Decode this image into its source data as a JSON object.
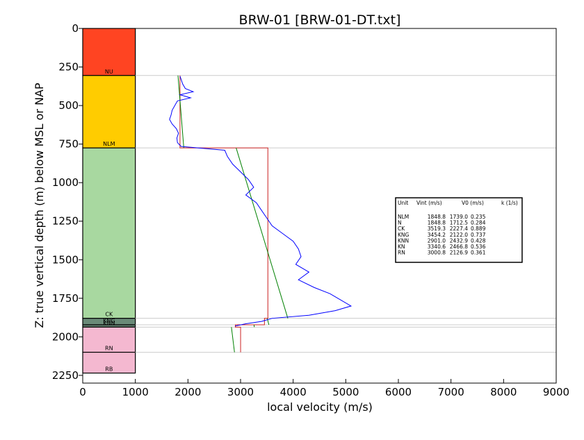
{
  "chart_data": {
    "type": "line",
    "title": "BRW-01 [BRW-01-DT.txt]",
    "xlabel": "local velocity (m/s)",
    "ylabel": "Z: true vertical depth (m) below MSL or NAP",
    "xlim": [
      0,
      9000
    ],
    "ylim": [
      2300,
      0
    ],
    "y_inverted": true,
    "x_ticks": [
      "0",
      "1000",
      "2000",
      "3000",
      "4000",
      "5000",
      "6000",
      "7000",
      "8000",
      "9000"
    ],
    "y_ticks": [
      "0",
      "250",
      "500",
      "750",
      "1000",
      "1250",
      "1500",
      "1750",
      "2000",
      "2250"
    ],
    "grid": false,
    "colors": {
      "sonic_log": "#0000ff",
      "interval_velocity": "#cc2222",
      "linear_model": "#008000",
      "boundary_lines": "#cccccc"
    },
    "strat_units": [
      {
        "label": "NU",
        "top": 0,
        "base": 305,
        "color": "#ff4422"
      },
      {
        "label": "NLM",
        "top": 305,
        "base": 775,
        "color": "#ffcc00"
      },
      {
        "label": "CK",
        "top": 775,
        "base": 1880,
        "color": "#a8d8a0"
      },
      {
        "label": "KNG",
        "top": 1880,
        "base": 1922,
        "color": "#6a8a78"
      },
      {
        "label": "KNN",
        "top": 1922,
        "base": 1937,
        "color": "#6a8a78"
      },
      {
        "label": "RN",
        "top": 1937,
        "base": 2100,
        "color": "#f4b8d0"
      },
      {
        "label": "RB",
        "top": 2100,
        "base": 2235,
        "color": "#f4b8d0"
      }
    ],
    "boundary_depths": [
      305,
      775,
      1880,
      1922,
      1937,
      2100
    ],
    "series": [
      {
        "kind": "interval-velocity",
        "segments": [
          {
            "top": 305,
            "base": 775,
            "v": 1848.8
          },
          {
            "top": 775,
            "base": 1880,
            "v": 3519.3
          },
          {
            "top": 1880,
            "base": 1922,
            "v": 3454.2
          },
          {
            "top": 1922,
            "base": 1937,
            "v": 2901.0
          },
          {
            "top": 1937,
            "base": 2100,
            "v": 3000.8
          }
        ]
      },
      {
        "kind": "linear-velocity-model",
        "segments": [
          {
            "top": 305,
            "base": 775,
            "v0": 1739.0,
            "k": 0.235
          },
          {
            "top": 775,
            "base": 1880,
            "v0": 2227.4,
            "k": 0.889
          },
          {
            "top": 1880,
            "base": 1922,
            "v0": 2122.0,
            "k": 0.737
          },
          {
            "top": 1922,
            "base": 1937,
            "v0": 2432.9,
            "k": 0.428
          },
          {
            "top": 1937,
            "base": 2100,
            "v0": 2126.9,
            "k": 0.361
          }
        ]
      },
      {
        "kind": "sonic-log",
        "depth": [
          310,
          360,
          390,
          410,
          430,
          450,
          470,
          500,
          530,
          560,
          590,
          620,
          650,
          680,
          710,
          740,
          765,
          790,
          830,
          880,
          930,
          980,
          1030,
          1080,
          1130,
          1180,
          1230,
          1280,
          1330,
          1380,
          1430,
          1480,
          1530,
          1580,
          1630,
          1680,
          1720,
          1760,
          1800,
          1830,
          1860,
          1880,
          1900,
          1915,
          1930
        ],
        "velocity": [
          1850,
          1900,
          1950,
          2100,
          1850,
          2050,
          1800,
          1750,
          1700,
          1680,
          1650,
          1700,
          1780,
          1820,
          1790,
          1800,
          1870,
          2700,
          2750,
          2850,
          3000,
          3150,
          3250,
          3100,
          3300,
          3400,
          3500,
          3600,
          3800,
          4000,
          4100,
          4150,
          4050,
          4300,
          4100,
          4400,
          4700,
          4900,
          5100,
          4800,
          4300,
          3600,
          3400,
          3100,
          2900
        ]
      }
    ],
    "table": {
      "headers": [
        "Unit",
        "Vint (m/s)",
        "V0 (m/s)",
        "k (1/s)"
      ],
      "rows": [
        {
          "unit": "NLM",
          "vint": "1848.8",
          "v0": "1739.0",
          "k": "0.235"
        },
        {
          "unit": "N",
          "vint": "1848.8",
          "v0": "1712.5",
          "k": "0.284"
        },
        {
          "unit": "CK",
          "vint": "3519.3",
          "v0": "2227.4",
          "k": "0.889"
        },
        {
          "unit": "KNG",
          "vint": "3454.2",
          "v0": "2122.0",
          "k": "0.737"
        },
        {
          "unit": "KNN",
          "vint": "2901.0",
          "v0": "2432.9",
          "k": "0.428"
        },
        {
          "unit": "KN",
          "vint": "3340.6",
          "v0": "2466.8",
          "k": "0.536"
        },
        {
          "unit": "RN",
          "vint": "3000.8",
          "v0": "2126.9",
          "k": "0.361"
        }
      ]
    }
  }
}
